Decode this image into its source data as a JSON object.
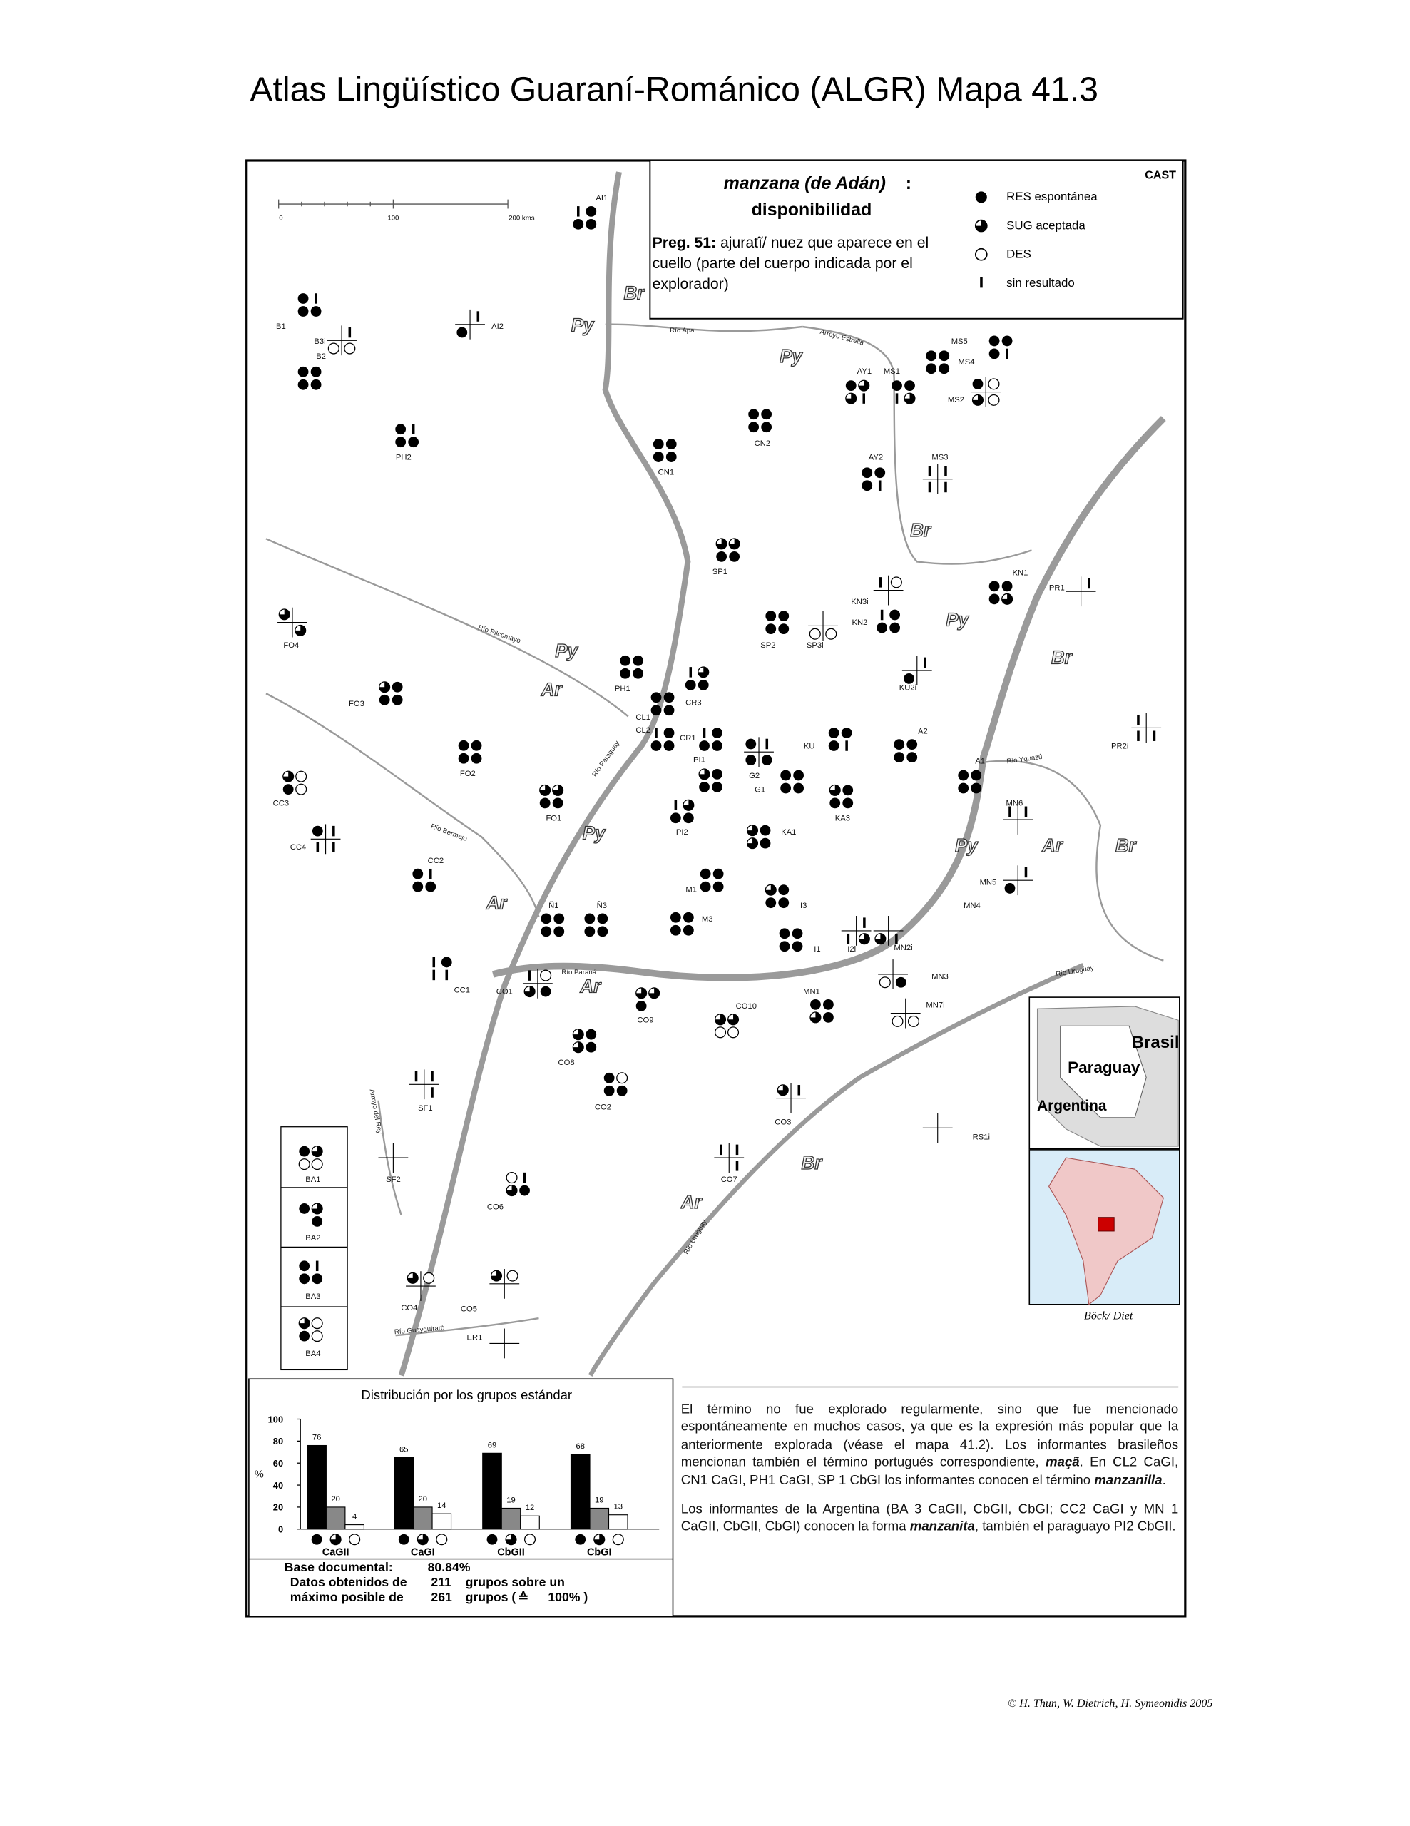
{
  "title": "Atlas Lingüístico Guaraní-Románico (ALGR)  Mapa 41.3",
  "header": {
    "term": "manzana (de Adán)",
    "colon": ":",
    "subtitle": "disponibilidad",
    "code": "CAST",
    "question_label": "Preg. 51:",
    "question": "ajuratĩ/ nuez que aparece en el cuello (parte del cuerpo indicada por el explorador)",
    "legend": [
      "RES espontánea",
      "SUG aceptada",
      "DES",
      "sin resultado"
    ]
  },
  "map": {
    "scale": [
      "0",
      "100",
      "200 kms"
    ],
    "points": [
      "AI1",
      "B1",
      "AI2",
      "B3i",
      "B2",
      "PH2",
      "CN1",
      "CN2",
      "AY1",
      "MS1",
      "MS5",
      "MS4",
      "MS2",
      "AY2",
      "MS3",
      "SP1",
      "KN1",
      "PR1",
      "KN3i",
      "KN2",
      "SP2",
      "SP3i",
      "FO4",
      "KU2i",
      "PH1",
      "CR3",
      "FO3",
      "CL1",
      "CL2",
      "CR1",
      "A2",
      "KU",
      "PR2i",
      "PI1",
      "G2",
      "FO2",
      "A1",
      "G1",
      "CC3",
      "FO1",
      "MN6",
      "KA3",
      "PI2",
      "KA1",
      "CC4",
      "CC2",
      "MN5",
      "M1",
      "Ñ1",
      "Ñ3",
      "MN4",
      "I3",
      "M3",
      "I1",
      "I2i",
      "MN2i",
      "CC1",
      "CO1",
      "MN3",
      "MN1",
      "CO10",
      "CO9",
      "MN7i",
      "CO8",
      "CO2",
      "CO3",
      "SF1",
      "RS1i",
      "CO7",
      "SF2",
      "CO6",
      "CO4",
      "CO5",
      "ER1",
      "BA1",
      "BA2",
      "BA3",
      "BA4"
    ],
    "country_labels": [
      "Br",
      "Py",
      "Py",
      "Br",
      "Py",
      "Br",
      "Py",
      "Ar",
      "Py",
      "Py",
      "Ar",
      "Br",
      "Ar",
      "Ar",
      "Br",
      "Ar"
    ],
    "rivers": [
      "Río Apa",
      "Arroyo Estrella",
      "Río Pilcomayo",
      "Río Paraguay",
      "Río Bermejo",
      "Río Paraná",
      "Río Yguazú",
      "Río Uruguay",
      "Arroyo del Rey",
      "Río Uruguay",
      "Río Guayquiraró"
    ],
    "inset": {
      "labels": [
        "Brasil",
        "Paraguay",
        "Argentina"
      ],
      "credit": "Böck/ Diet"
    }
  },
  "chart_data": {
    "type": "bar",
    "title": "Distribución por los grupos estándar",
    "y_label": "%",
    "categories": [
      "CaGII",
      "CaGI",
      "CbGII",
      "CbGI"
    ],
    "series": [
      {
        "color": "#000000",
        "values": [
          76,
          65,
          69,
          68
        ]
      },
      {
        "color": "#888888",
        "values": [
          20,
          20,
          19,
          19
        ]
      },
      {
        "color": "#ffffff",
        "values": [
          4,
          14,
          12,
          13
        ]
      }
    ],
    "ylim": [
      0,
      100
    ],
    "yticks": [
      0,
      20,
      40,
      60,
      80,
      100
    ]
  },
  "base": [
    [
      "Base documental:",
      "80.84%"
    ],
    [
      "Datos obtenidos de",
      211,
      "grupos sobre un"
    ],
    [
      "máximo posible de",
      261,
      "grupos (",
      "≙",
      "100% )"
    ]
  ],
  "text": {
    "paragraphs": [
      [
        "El término no fue explorado regularmente, sino que fue mencionado espontáneamente en muchos casos, ya que es la expresión más popular que la anteriormente explorada (véase el mapa 41.2). Los informantes brasileños mencionan también el término portugués correspondiente, ",
        "maçã",
        ". En CL2 CaGI, CN1 CaGI, PH1 CaGI, SP 1 CbGI los informantes conocen el término ",
        "manzanilla",
        "."
      ],
      [
        "Los informantes de la Argentina (BA 3 CaGII, CbGII, CbGI; CC2 CaGI y MN 1 CaGII, CbGII, CbGI) conocen la forma ",
        "manzanita",
        ", también el paraguayo PI2 CbGII."
      ]
    ]
  },
  "footer": "© H. Thun, W. Dietrich, H. Symeonidis 2005"
}
